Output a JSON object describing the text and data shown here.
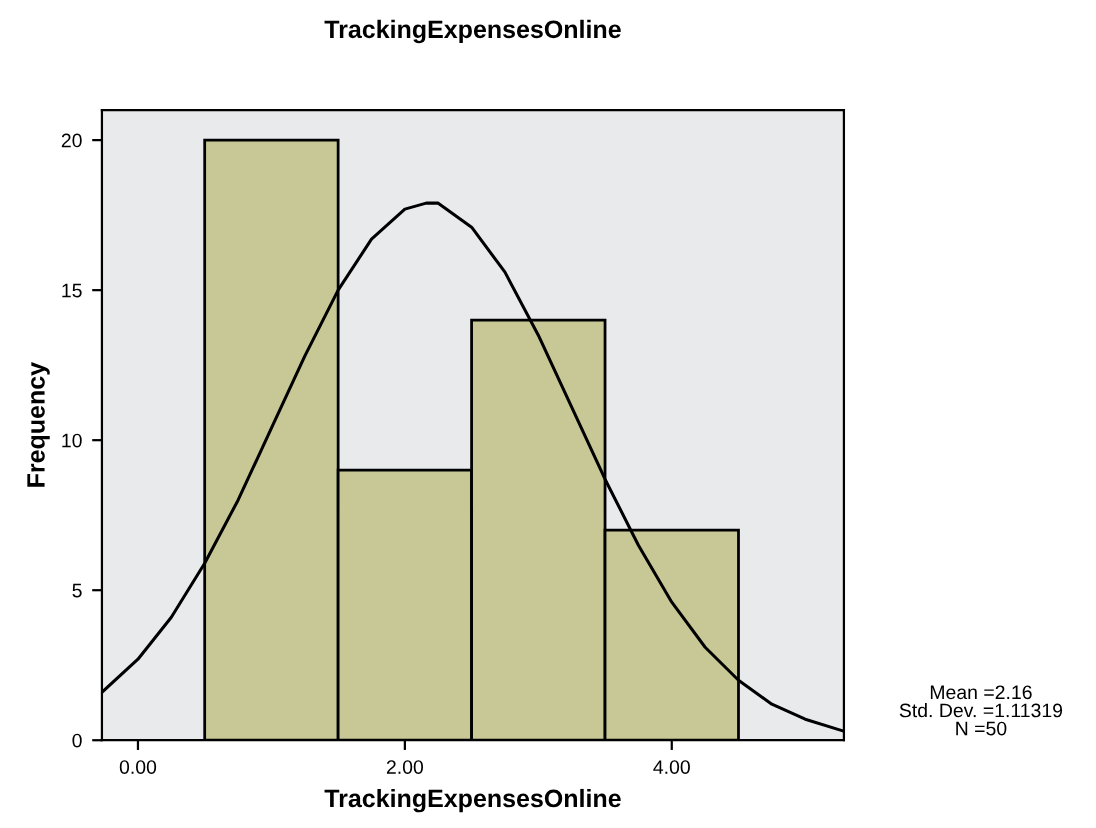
{
  "chart_data": {
    "type": "histogram",
    "title": "TrackingExpensesOnline",
    "xlabel": "TrackingExpensesOnline",
    "ylabel": "Frequency",
    "series": [
      {
        "bins": [
          0.5,
          1.5,
          2.5,
          3.5,
          4.5
        ],
        "values": [
          20,
          9,
          14,
          7
        ],
        "color": "#c8c896"
      },
      {
        "type": "line",
        "color": "#000000",
        "x": [
          -0.27,
          0,
          0.25,
          0.5,
          0.75,
          1,
          1.25,
          1.5,
          1.75,
          2,
          2.16,
          2.25,
          2.5,
          2.75,
          3,
          3.25,
          3.5,
          3.75,
          4,
          4.25,
          4.5,
          4.75,
          5,
          5.29
        ],
        "values": [
          1.6,
          2.7,
          4.1,
          5.9,
          8.0,
          10.4,
          12.8,
          15.0,
          16.7,
          17.7,
          17.9,
          17.9,
          17.1,
          15.6,
          13.5,
          11.1,
          8.7,
          6.5,
          4.6,
          3.1,
          2.0,
          1.2,
          0.7,
          0.3
        ]
      }
    ],
    "xlim": [
      -0.27,
      5.29
    ],
    "ylim": [
      0,
      21
    ],
    "xticks": [
      {
        "value": 0,
        "label": "0.00"
      },
      {
        "value": 2,
        "label": "2.00"
      },
      {
        "value": 4,
        "label": "4.00"
      }
    ],
    "yticks": [
      0,
      5,
      10,
      15,
      20
    ],
    "grid": false,
    "legend": false,
    "marker": "none",
    "line_style": "solid",
    "annotations": [
      "Mean =2.16",
      "Std. Dev. =1.11319",
      "N =50"
    ]
  }
}
